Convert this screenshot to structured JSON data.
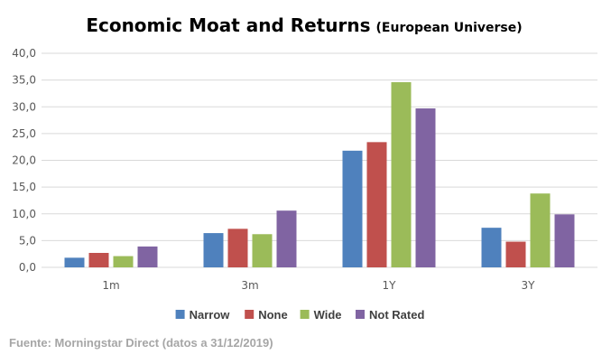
{
  "chart_data": {
    "type": "bar",
    "title": "Economic Moat and Returns",
    "subtitle": "(European Universe)",
    "categories": [
      "1m",
      "3m",
      "1Y",
      "3Y"
    ],
    "series": [
      {
        "name": "Narrow",
        "color": "#4f81bd",
        "values": [
          1.8,
          6.4,
          21.8,
          7.4
        ]
      },
      {
        "name": "None",
        "color": "#c0504d",
        "values": [
          2.7,
          7.2,
          23.4,
          4.8
        ]
      },
      {
        "name": "Wide",
        "color": "#9bbb59",
        "values": [
          2.1,
          6.2,
          34.6,
          13.8
        ]
      },
      {
        "name": "Not Rated",
        "color": "#8064a2",
        "values": [
          3.9,
          10.6,
          29.7,
          9.9
        ]
      }
    ],
    "y_ticks": [
      "0,0",
      "5,0",
      "10,0",
      "15,0",
      "20,0",
      "25,0",
      "30,0",
      "35,0",
      "40,0"
    ],
    "ylim": [
      0,
      40
    ],
    "y_step": 5,
    "grid": true,
    "legend_position": "bottom",
    "xlabel": "",
    "ylabel": ""
  },
  "source": "Fuente: Morningstar Direct (datos a 31/12/2019)"
}
